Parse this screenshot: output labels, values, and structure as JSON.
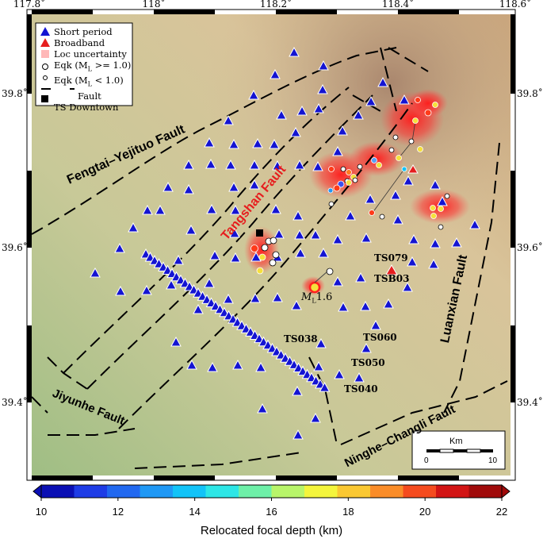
{
  "map": {
    "lon_ticks": [
      {
        "label": "117.8˚",
        "lon": 117.8
      },
      {
        "label": "118˚",
        "lon": 118.0
      },
      {
        "label": "118.2˚",
        "lon": 118.2
      },
      {
        "label": "118.4˚",
        "lon": 118.4
      },
      {
        "label": "118.6˚",
        "lon": 118.6
      }
    ],
    "lat_ticks": [
      {
        "label": "39.8˚",
        "lat": 39.8
      },
      {
        "label": "39.6˚",
        "lat": 39.6
      },
      {
        "label": "39.4˚",
        "lat": 39.4
      }
    ],
    "legend": {
      "short_period": "Short period",
      "broadband": "Broadband",
      "loc_uncertainty": "Loc uncertainty",
      "eqk_big_prefix": "Eqk (M",
      "eqk_big_sub": "L",
      "eqk_big_suffix": " >= 1.0)",
      "eqk_small_prefix": "Eqk (M",
      "eqk_small_sub": "L",
      "eqk_small_suffix": " < 1.0)",
      "fault": "Fault",
      "ts_downtown": "TS Downtown"
    },
    "fault_labels": {
      "fengtai": "Fengtai–Yejituo Fault",
      "tangshan": "Tangshan Fault",
      "luanxian": "Luanxian Fault",
      "jiyunhe": "Jiyunhe Fault",
      "ninghe": "Ninghe–Changli Fault"
    },
    "stations": {
      "ts079": "TS079",
      "tsb03": "TSB03",
      "ts038": "TS038",
      "ts060": "TS060",
      "ts050": "TS050",
      "ts040": "TS040"
    },
    "magnitude_prefix": "M",
    "magnitude_sub": "L",
    "magnitude_value": "1.6",
    "scale_bar": {
      "title": "Km",
      "min": "0",
      "max": "10"
    },
    "colorbar": {
      "label": "Relocated focal depth (km)",
      "min": 10,
      "max": 22,
      "ticks": [
        10,
        12,
        14,
        16,
        18,
        20,
        22
      ],
      "colors": [
        "#0a0fb4",
        "#1e3ce6",
        "#2168f0",
        "#1f98f5",
        "#12c3f8",
        "#2de6e6",
        "#6ef0a8",
        "#b8f56a",
        "#f4f53c",
        "#fac832",
        "#fa8c28",
        "#f54b1e",
        "#d21414",
        "#a00a0a"
      ]
    },
    "colors": {
      "station_blue": "#1414d2",
      "broadband_red": "#e61e1e",
      "highlight_red": "#ff2020"
    }
  }
}
